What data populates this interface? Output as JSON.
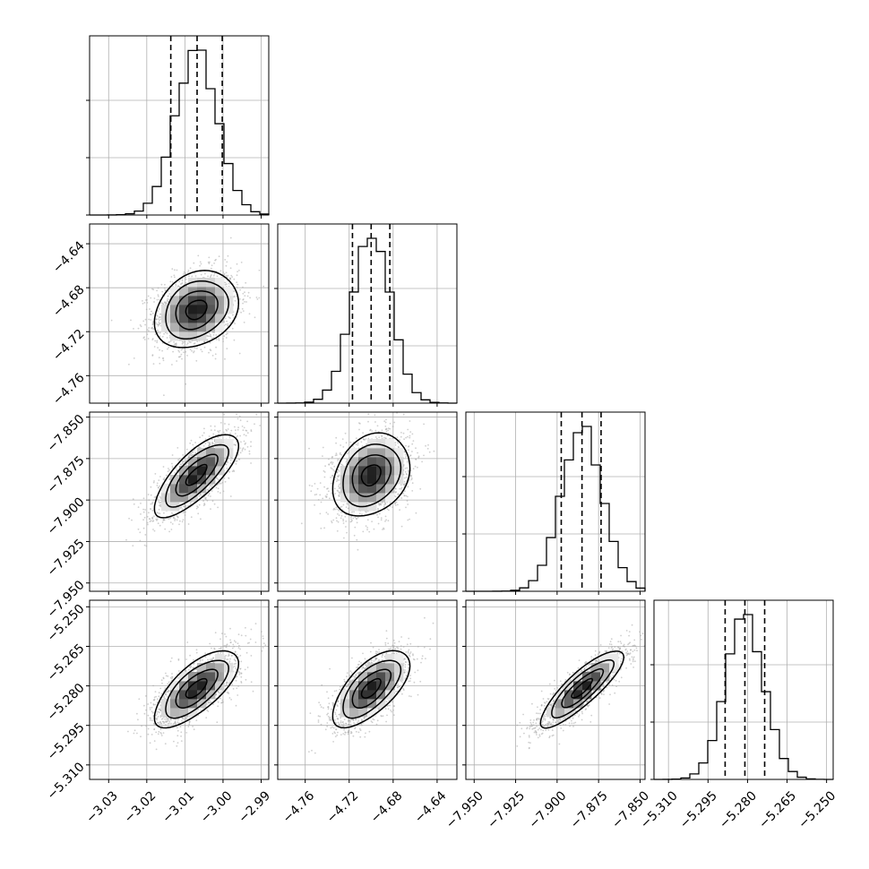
{
  "chart_data": {
    "type": "corner",
    "parameters": [
      {
        "range": [
          -3.035,
          -2.988
        ],
        "ticks": [
          "−3.03",
          "−3.02",
          "−3.01",
          "−3.00",
          "−2.99"
        ],
        "tick_values": [
          -3.03,
          -3.02,
          -3.01,
          -3.0,
          -2.99
        ],
        "mean": -3.007,
        "std": 0.0055,
        "quantiles": [
          -3.0137,
          -3.0068,
          -3.0002
        ]
      },
      {
        "range": [
          -4.785,
          -4.622
        ],
        "ticks": [
          "−4.76",
          "−4.72",
          "−4.68",
          "−4.64"
        ],
        "tick_values": [
          -4.76,
          -4.72,
          -4.68,
          -4.64
        ],
        "mean": -4.7,
        "std": 0.0175,
        "quantiles": [
          -4.717,
          -4.7,
          -4.683
        ]
      },
      {
        "range": [
          -7.955,
          -7.847
        ],
        "ticks": [
          "−7.950",
          "−7.925",
          "−7.900",
          "−7.875",
          "−7.850"
        ],
        "tick_values": [
          -7.95,
          -7.925,
          -7.9,
          -7.875,
          -7.85
        ],
        "mean": -7.885,
        "std": 0.0125,
        "quantiles": [
          -7.8975,
          -7.885,
          -7.8735
        ]
      },
      {
        "range": [
          -5.3155,
          -5.2475
        ],
        "ticks": [
          "−5.310",
          "−5.295",
          "−5.280",
          "−5.265",
          "−5.250"
        ],
        "tick_values": [
          -5.31,
          -5.295,
          -5.28,
          -5.265,
          -5.25
        ],
        "mean": -5.281,
        "std": 0.0073,
        "quantiles": [
          -5.2885,
          -5.281,
          -5.2735
        ]
      }
    ],
    "correlations": [
      {
        "pair": [
          1,
          0
        ],
        "rho": 0.25
      },
      {
        "pair": [
          2,
          0
        ],
        "rho": 0.75
      },
      {
        "pair": [
          2,
          1
        ],
        "rho": 0.25
      },
      {
        "pair": [
          3,
          0
        ],
        "rho": 0.7
      },
      {
        "pair": [
          3,
          1
        ],
        "rho": 0.65
      },
      {
        "pair": [
          3,
          2
        ],
        "rho": 0.85
      }
    ],
    "grid": true,
    "axis_labels": []
  }
}
